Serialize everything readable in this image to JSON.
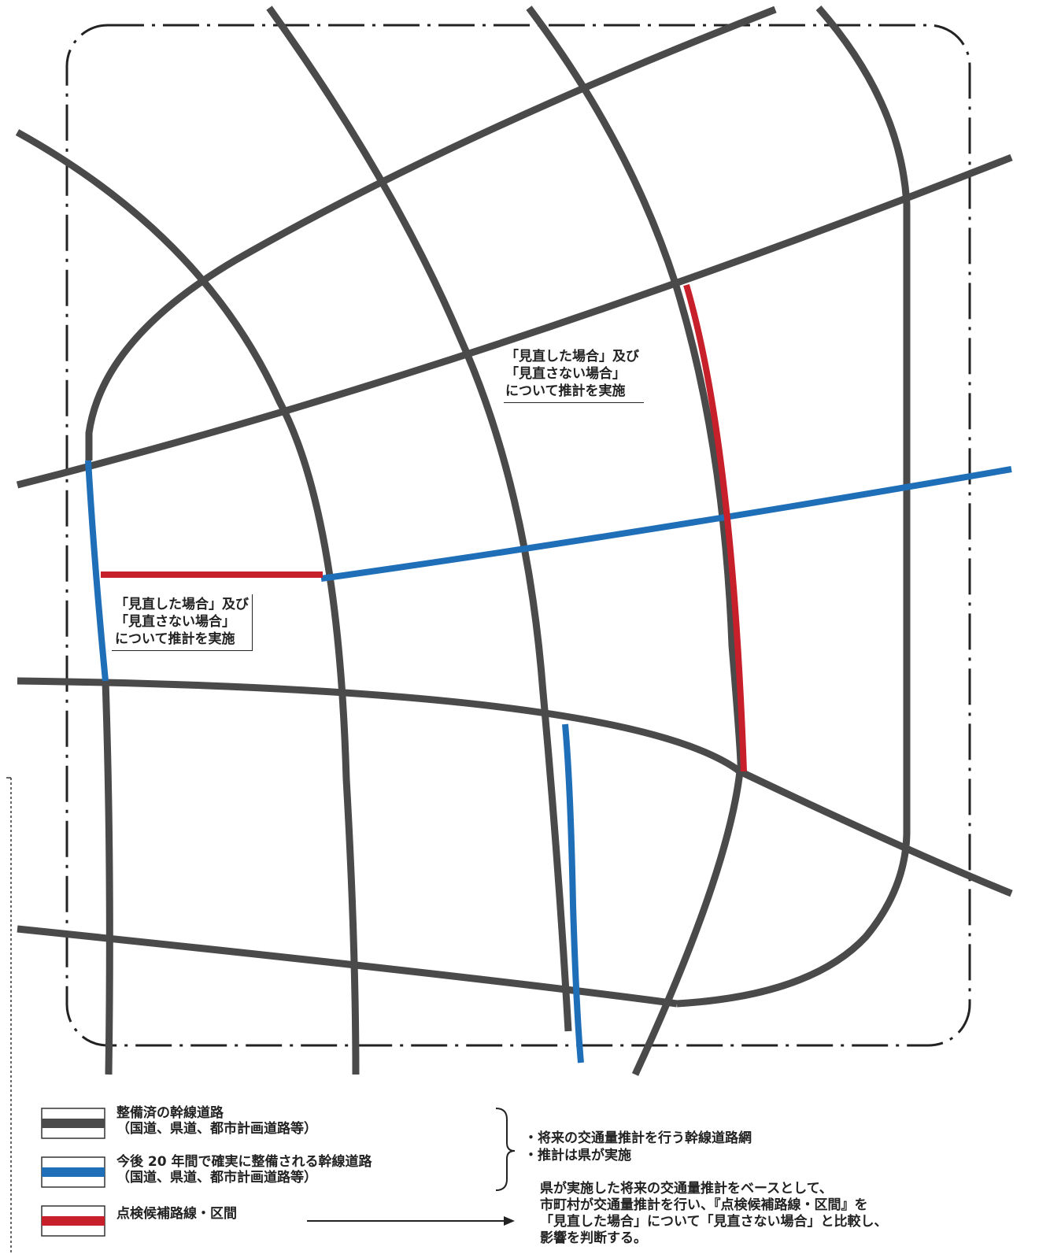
{
  "colors": {
    "existing_road": "#4a4a4a",
    "planned_road": "#1f6fb8",
    "candidate_route": "#c8202a",
    "boundary": "#222222"
  },
  "annotations": {
    "upper": [
      "「見直した場合」及び",
      "「見直さない場合」",
      "について推計を実施"
    ],
    "lower": [
      "「見直した場合」及び",
      "「見直さない場合」",
      "について推計を実施"
    ]
  },
  "legend": {
    "existing": [
      "整備済の幹線道路",
      "（国道、県道、都市計画道路等）"
    ],
    "planned": [
      "今後 20 年間で確実に整備される幹線道路",
      "（国道、県道、都市計画道路等）"
    ],
    "candidate": "点検候補路線・区間",
    "brace_notes": [
      "・将来の交通量推計を行う幹線道路網",
      "・推計は県が実施"
    ],
    "note": [
      "県が実施した将来の交通量推計をベースとして、",
      "市町村が交通量推計を行い、『点検候補路線・区間』を",
      "「見直した場合」について「見直さない場合」と比較し、",
      "影響を判断する。"
    ]
  }
}
